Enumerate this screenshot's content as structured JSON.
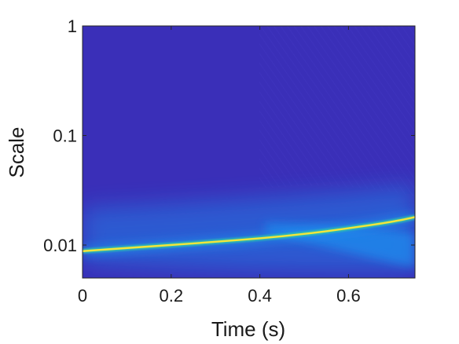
{
  "chart_data": {
    "type": "heatmap",
    "title": "",
    "xlabel": "Time (s)",
    "ylabel": "Scale",
    "xlim": [
      0,
      0.75
    ],
    "ylim": [
      0.005,
      1
    ],
    "y_scale": "log",
    "x_ticks": [
      0,
      0.2,
      0.4,
      0.6
    ],
    "x_tick_labels": [
      "0",
      "0.2",
      "0.4",
      "0.6"
    ],
    "y_ticks": [
      0.01,
      0.1,
      1
    ],
    "y_tick_labels": [
      "0.01",
      "0.1",
      "1"
    ],
    "grid": false,
    "colormap": "parula",
    "colors": {
      "background": "#3a2fb8",
      "ridge_peak": "#f4e53a",
      "ridge_mid": "#31c8a8",
      "spread": "#1f8ff0"
    },
    "ridge": {
      "description": "scale of peak energy vs time",
      "x": [
        0,
        0.1,
        0.2,
        0.3,
        0.4,
        0.5,
        0.6,
        0.7,
        0.75
      ],
      "y": [
        0.0088,
        0.0094,
        0.01,
        0.0107,
        0.0115,
        0.0126,
        0.0142,
        0.0163,
        0.018
      ]
    }
  }
}
